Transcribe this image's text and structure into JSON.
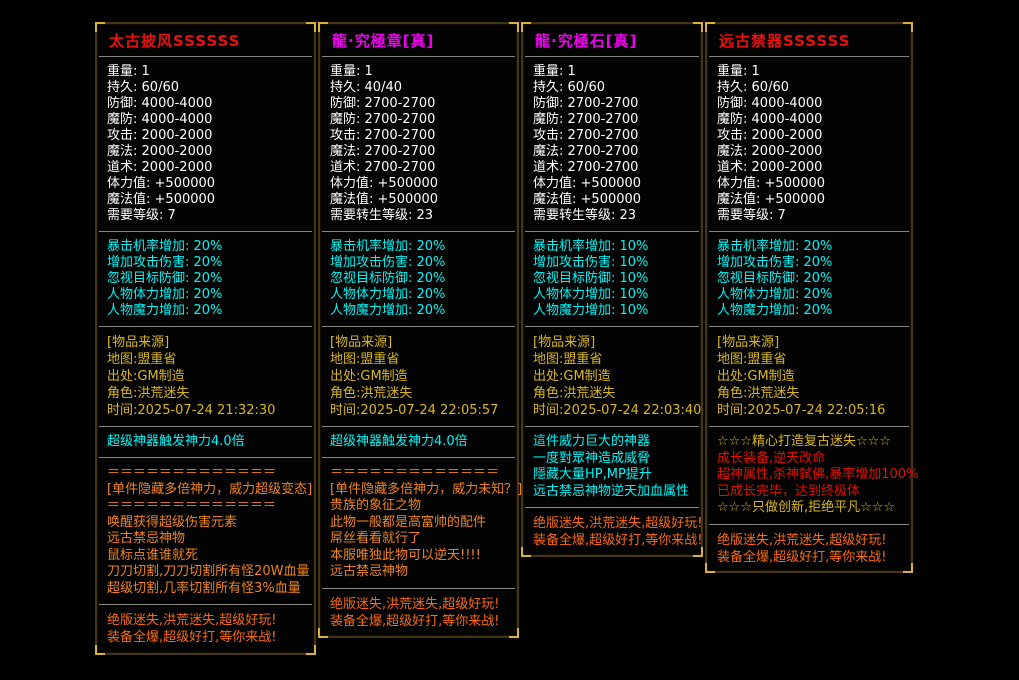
{
  "colors": {
    "white": "#ffffff",
    "cyan": "#00f6f6",
    "yellow": "#d8b71e",
    "orange": "#ee8420",
    "red_orange": "#f86a14",
    "red": "#e01202",
    "title_red": "#e81010",
    "title_magenta": "#f000f0",
    "border": "#453613",
    "corner_gold": "#d8b33c",
    "separator": "#86867a"
  },
  "panels": [
    {
      "title": "太古披风SSSSSS",
      "title_color": "#e81010",
      "stats": [
        {
          "label": "重量",
          "value": "1"
        },
        {
          "label": "持久",
          "value": "60/60"
        },
        {
          "label": "防御",
          "value": "4000-4000"
        },
        {
          "label": "魔防",
          "value": "4000-4000"
        },
        {
          "label": "攻击",
          "value": "2000-2000"
        },
        {
          "label": "魔法",
          "value": "2000-2000"
        },
        {
          "label": "道术",
          "value": "2000-2000"
        },
        {
          "label": "体力值",
          "value": "+500000"
        },
        {
          "label": "魔法值",
          "value": "+500000"
        },
        {
          "label": "需要等级",
          "value": "7"
        }
      ],
      "blocks": [
        {
          "name": "bonus",
          "color": "cyan",
          "lines": [
            "暴击机率增加: 20%",
            "增加攻击伤害: 20%",
            "忽视目标防御: 20%",
            "人物体力增加: 20%",
            "人物魔力增加: 20%"
          ]
        },
        {
          "name": "source",
          "color": "yellow",
          "lines": [
            "[物品来源]",
            "地图:盟重省",
            "出处:GM制造",
            "角色:洪荒迷失",
            "时间:2025-07-24 21:32:30"
          ]
        },
        {
          "name": "power",
          "color": "cyan",
          "lines": [
            "超级神器触发神力4.0倍"
          ]
        },
        {
          "name": "desc",
          "color": "orange",
          "lines": [
            "＝＝＝＝＝＝＝＝＝＝＝＝＝",
            "[单件隐藏多倍神力，威力超级变态]",
            "＝＝＝＝＝＝＝＝＝＝＝＝＝",
            "唤醒获得超级伤害元素",
            "远古禁忌神物",
            "鼠标点谁谁就死",
            "刀刀切割,刀刀切割所有怪20W血量",
            "超级切割,几率切割所有怪3%血量"
          ]
        },
        {
          "name": "footer",
          "color": "red_orange",
          "lines": [
            "绝版迷失,洪荒迷失,超级好玩!",
            "装备全爆,超级好打,等你来战!"
          ]
        }
      ]
    },
    {
      "title": "龍·究極章[真]",
      "title_color": "#f000f0",
      "stats": [
        {
          "label": "重量",
          "value": "1"
        },
        {
          "label": "持久",
          "value": "40/40"
        },
        {
          "label": "防御",
          "value": "2700-2700"
        },
        {
          "label": "魔防",
          "value": "2700-2700"
        },
        {
          "label": "攻击",
          "value": "2700-2700"
        },
        {
          "label": "魔法",
          "value": "2700-2700"
        },
        {
          "label": "道术",
          "value": "2700-2700"
        },
        {
          "label": "体力值",
          "value": "+500000"
        },
        {
          "label": "魔法值",
          "value": "+500000"
        },
        {
          "label": "需要转生等级",
          "value": "23"
        }
      ],
      "blocks": [
        {
          "name": "bonus",
          "color": "cyan",
          "lines": [
            "暴击机率增加: 20%",
            "增加攻击伤害: 20%",
            "忽视目标防御: 20%",
            "人物体力增加: 20%",
            "人物魔力增加: 20%"
          ]
        },
        {
          "name": "source",
          "color": "yellow",
          "lines": [
            "[物品来源]",
            "地图:盟重省",
            "出处:GM制造",
            "角色:洪荒迷失",
            "时间:2025-07-24 22:05:57"
          ]
        },
        {
          "name": "power",
          "color": "cyan",
          "lines": [
            "超级神器触发神力4.0倍"
          ]
        },
        {
          "name": "desc",
          "color": "orange",
          "lines": [
            "＝＝＝＝＝＝＝＝＝＝＝＝＝",
            "[单件隐藏多倍神力，威力未知？]",
            "贵族的象征之物",
            "此物一般都是高富帅的配件",
            "屌丝看看就行了",
            "本服唯独此物可以逆天!!!!",
            "远古禁忌神物"
          ]
        },
        {
          "name": "footer",
          "color": "red_orange",
          "lines": [
            "绝版迷失,洪荒迷失,超级好玩!",
            "装备全爆,超级好打,等你来战!"
          ]
        }
      ]
    },
    {
      "title": "龍·究極石[真]",
      "title_color": "#f000f0",
      "stats": [
        {
          "label": "重量",
          "value": "1"
        },
        {
          "label": "持久",
          "value": "60/60"
        },
        {
          "label": "防御",
          "value": "2700-2700"
        },
        {
          "label": "魔防",
          "value": "2700-2700"
        },
        {
          "label": "攻击",
          "value": "2700-2700"
        },
        {
          "label": "魔法",
          "value": "2700-2700"
        },
        {
          "label": "道术",
          "value": "2700-2700"
        },
        {
          "label": "体力值",
          "value": "+500000"
        },
        {
          "label": "魔法值",
          "value": "+500000"
        },
        {
          "label": "需要转生等级",
          "value": "23"
        }
      ],
      "blocks": [
        {
          "name": "bonus",
          "color": "cyan",
          "lines": [
            "暴击机率增加: 10%",
            "增加攻击伤害: 10%",
            "忽视目标防御: 10%",
            "人物体力增加: 10%",
            "人物魔力增加: 10%"
          ]
        },
        {
          "name": "source",
          "color": "yellow",
          "lines": [
            "[物品来源]",
            "地图:盟重省",
            "出处:GM制造",
            "角色:洪荒迷失",
            "时间:2025-07-24 22:03:40"
          ]
        },
        {
          "name": "desc",
          "color": "cyan",
          "lines": [
            "這件威力巨大的神器",
            "一度對眾神造成威脅",
            "隱藏大量HP,MP提升",
            "远古禁忌神物逆天加血属性"
          ]
        },
        {
          "name": "footer",
          "color": "red_orange",
          "lines": [
            "绝版迷失,洪荒迷失,超级好玩!",
            "装备全爆,超级好打,等你来战!"
          ]
        }
      ]
    },
    {
      "title": "远古禁器SSSSSS",
      "title_color": "#e81010",
      "stats": [
        {
          "label": "重量",
          "value": "1"
        },
        {
          "label": "持久",
          "value": "60/60"
        },
        {
          "label": "防御",
          "value": "4000-4000"
        },
        {
          "label": "魔防",
          "value": "4000-4000"
        },
        {
          "label": "攻击",
          "value": "2000-2000"
        },
        {
          "label": "魔法",
          "value": "2000-2000"
        },
        {
          "label": "道术",
          "value": "2000-2000"
        },
        {
          "label": "体力值",
          "value": "+500000"
        },
        {
          "label": "魔法值",
          "value": "+500000"
        },
        {
          "label": "需要等级",
          "value": "7"
        }
      ],
      "blocks": [
        {
          "name": "bonus",
          "color": "cyan",
          "lines": [
            "暴击机率增加: 20%",
            "增加攻击伤害: 20%",
            "忽视目标防御: 20%",
            "人物体力增加: 20%",
            "人物魔力增加: 20%"
          ]
        },
        {
          "name": "source",
          "color": "yellow",
          "lines": [
            "[物品来源]",
            "地图:盟重省",
            "出处:GM制造",
            "角色:洪荒迷失",
            "时间:2025-07-24 22:05:16"
          ]
        },
        {
          "name": "desc",
          "color": "orange",
          "lines": [
            {
              "text": "☆☆☆精心打造复古迷失☆☆☆",
              "color": "yellow"
            },
            {
              "text": "成长装备,逆天改命",
              "color": "red"
            },
            {
              "text": "超神属性,杀神弑佛,暴率增加100%",
              "color": "red"
            },
            {
              "text": "已成长完毕，达到终极体",
              "color": "red"
            },
            {
              "text": "☆☆☆只做创新,拒绝平凡☆☆☆",
              "color": "yellow"
            }
          ]
        },
        {
          "name": "footer",
          "color": "red_orange",
          "lines": [
            "绝版迷失,洪荒迷失,超级好玩!",
            "装备全爆,超级好打,等你来战!"
          ]
        }
      ]
    }
  ]
}
